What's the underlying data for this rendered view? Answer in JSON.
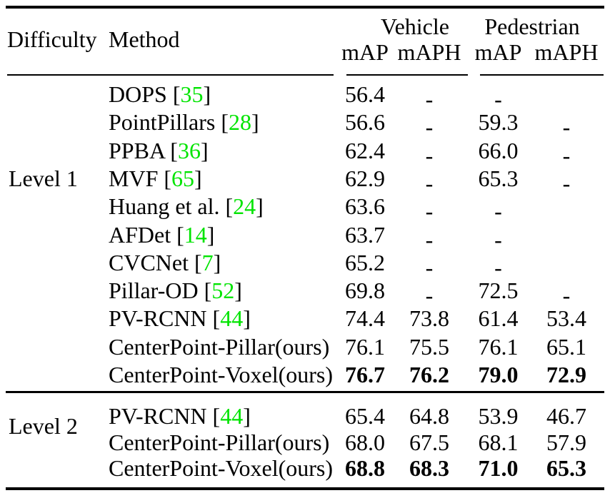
{
  "table": {
    "headers": {
      "difficulty": "Difficulty",
      "method": "Method",
      "group1": "Vehicle",
      "group2": "Pedestrian",
      "subheaders": [
        "mAP",
        "mAPH",
        "mAP",
        "mAPH"
      ]
    },
    "colors": {
      "citation_green": "#00e400",
      "text": "#000000",
      "background": "#ffffff",
      "rule": "#000000"
    },
    "missing_value_symbol": "-",
    "groups": [
      {
        "difficulty": "Level 1",
        "rows": [
          {
            "method": "DOPS",
            "cite": "35",
            "values": [
              "56.4",
              "-",
              "-",
              ""
            ],
            "bold": false
          },
          {
            "method": "PointPillars",
            "cite": "28",
            "values": [
              "56.6",
              "-",
              "59.3",
              "-"
            ],
            "bold": false
          },
          {
            "method": "PPBA",
            "cite": "36",
            "values": [
              "62.4",
              "-",
              "66.0",
              "-"
            ],
            "bold": false
          },
          {
            "method": "MVF",
            "cite": "65",
            "values": [
              "62.9",
              "-",
              "65.3",
              "-"
            ],
            "bold": false
          },
          {
            "method": "Huang et al.",
            "cite": "24",
            "values": [
              "63.6",
              "-",
              "-",
              ""
            ],
            "bold": false
          },
          {
            "method": "AFDet",
            "cite": "14",
            "values": [
              "63.7",
              "-",
              "-",
              ""
            ],
            "bold": false
          },
          {
            "method": "CVCNet",
            "cite": "7",
            "values": [
              "65.2",
              "-",
              "-",
              ""
            ],
            "bold": false
          },
          {
            "method": "Pillar-OD",
            "cite": "52",
            "values": [
              "69.8",
              "-",
              "72.5",
              "-"
            ],
            "bold": false
          },
          {
            "method": "PV-RCNN",
            "cite": "44",
            "values": [
              "74.4",
              "73.8",
              "61.4",
              "53.4"
            ],
            "bold": false
          },
          {
            "method": "CenterPoint-Pillar(ours)",
            "cite": null,
            "values": [
              "76.1",
              "75.5",
              "76.1",
              "65.1"
            ],
            "bold": false
          },
          {
            "method": "CenterPoint-Voxel(ours)",
            "cite": null,
            "values": [
              "76.7",
              "76.2",
              "79.0",
              "72.9"
            ],
            "bold": true
          }
        ]
      },
      {
        "difficulty": "Level 2",
        "rows": [
          {
            "method": "PV-RCNN",
            "cite": "44",
            "values": [
              "65.4",
              "64.8",
              "53.9",
              "46.7"
            ],
            "bold": false
          },
          {
            "method": "CenterPoint-Pillar(ours)",
            "cite": null,
            "values": [
              "68.0",
              "67.5",
              "68.1",
              "57.9"
            ],
            "bold": false
          },
          {
            "method": "CenterPoint-Voxel(ours)",
            "cite": null,
            "values": [
              "68.8",
              "68.3",
              "71.0",
              "65.3"
            ],
            "bold": true
          }
        ]
      }
    ]
  }
}
